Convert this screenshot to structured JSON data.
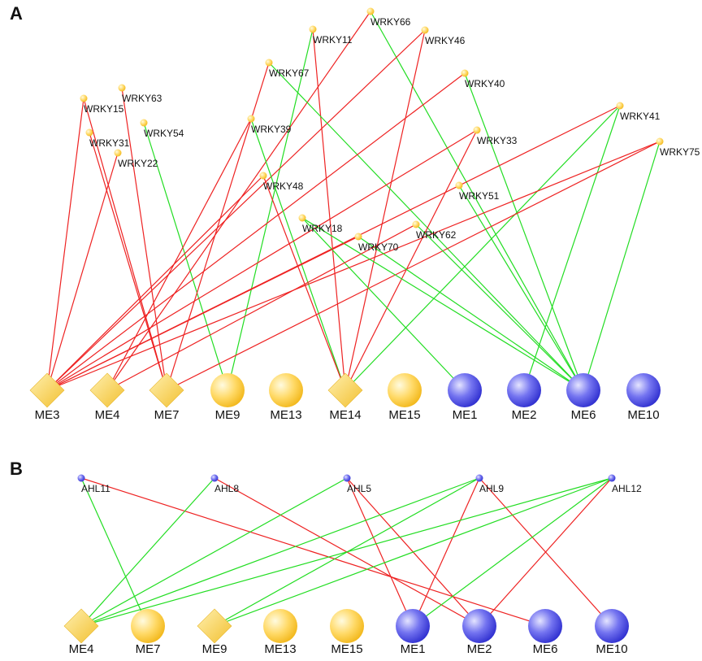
{
  "panels": [
    {
      "letter": "A",
      "top_nodes": [
        "WRKY15",
        "WRKY63",
        "WRKY31",
        "WRKY54",
        "WRKY22",
        "WRKY11",
        "WRKY66",
        "WRKY46",
        "WRKY67",
        "WRKY40",
        "WRKY39",
        "WRKY41",
        "WRKY33",
        "WRKY75",
        "WRKY48",
        "WRKY51",
        "WRKY18",
        "WRKY70",
        "WRKY62"
      ],
      "bottom_nodes": [
        "ME3",
        "ME4",
        "ME7",
        "ME9",
        "ME13",
        "ME14",
        "ME15",
        "ME1",
        "ME2",
        "ME6",
        "ME10"
      ]
    },
    {
      "letter": "B",
      "top_nodes": [
        "AHL11",
        "AHL8",
        "AHL5",
        "AHL9",
        "AHL12"
      ],
      "bottom_nodes": [
        "ME4",
        "ME7",
        "ME9",
        "ME13",
        "ME15",
        "ME1",
        "ME2",
        "ME6",
        "ME10"
      ]
    }
  ]
}
